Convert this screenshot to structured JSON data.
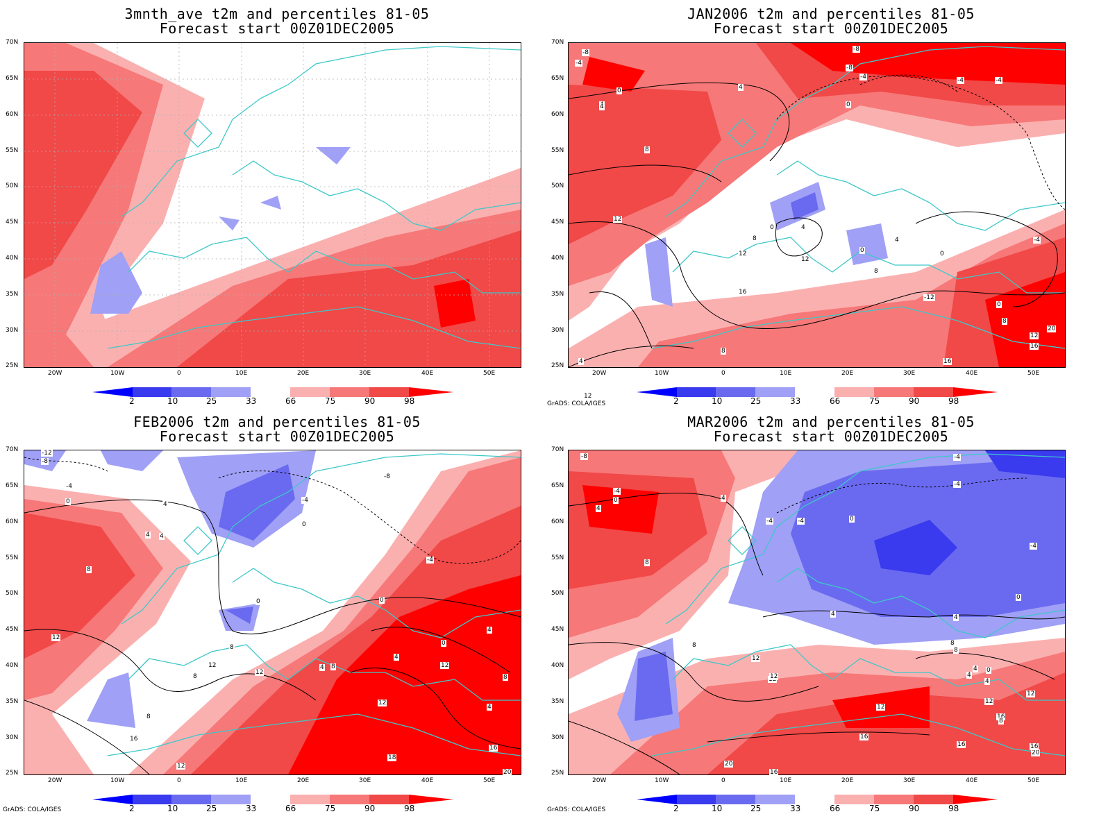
{
  "colors": {
    "blue_deep": "#3a3aee",
    "blue_mid": "#6a6af0",
    "blue_light": "#a0a0f6",
    "red_light": "#fbb0b0",
    "red_mid": "#f67878",
    "red_strong": "#f14848",
    "red_deep": "#ff0000",
    "coast": "#3ec8c8",
    "grid": "#b0b0b0"
  },
  "colorbar": {
    "labels": [
      "2",
      "10",
      "25",
      "33",
      "66",
      "75",
      "90",
      "98"
    ]
  },
  "lat_labels": [
    "70N",
    "65N",
    "60N",
    "55N",
    "50N",
    "45N",
    "40N",
    "35N",
    "30N",
    "25N"
  ],
  "lon_labels": [
    "20W",
    "10W",
    "0",
    "10E",
    "20E",
    "30E",
    "40E",
    "50E"
  ],
  "credit": "GrADS: COLA/IGES",
  "panels": [
    {
      "title1": "3mnth_ave t2m and percentiles 81-05",
      "title2": "Forecast start 00Z01DEC2005",
      "show_credit": false,
      "contour_labels": []
    },
    {
      "title1": "JAN2006 t2m and percentiles 81-05",
      "title2": "Forecast start 00Z01DEC2005",
      "show_credit": true,
      "contour_labels": [
        "-8",
        "-4",
        "0",
        "4",
        "-8",
        "-8",
        "-4",
        "-4",
        "-4",
        "0",
        "4",
        "4",
        "8",
        "12",
        "0",
        "4",
        "8",
        "12",
        "12",
        "0",
        "0",
        "-4",
        "4",
        "8",
        "-4",
        "-12",
        "0",
        "8",
        "12",
        "16",
        "4",
        "16",
        "20",
        "16",
        "8",
        "12"
      ]
    },
    {
      "title1": "FEB2006 t2m and percentiles 81-05",
      "title2": "Forecast start 00Z01DEC2005",
      "show_credit": true,
      "contour_labels": [
        "-12",
        "-8",
        "-4",
        "0",
        "4",
        "-8",
        "-4",
        "0",
        "4",
        "4",
        "8",
        "-4",
        "0",
        "0",
        "12",
        "8",
        "12",
        "12",
        "4",
        "8",
        "4",
        "0",
        "4",
        "8",
        "12",
        "8",
        "12",
        "4",
        "8",
        "16",
        "16",
        "18",
        "12",
        "20"
      ]
    },
    {
      "title1": "MAR2006 t2m and percentiles 81-05",
      "title2": "Forecast start 00Z01DEC2005",
      "show_credit": true,
      "contour_labels": [
        "-8",
        "-4",
        "0",
        "4",
        "4",
        "8",
        "-4",
        "-4",
        "-4",
        "-4",
        "0",
        "-4",
        "0",
        "4",
        "4",
        "8",
        "12",
        "12",
        "8",
        "12",
        "8",
        "4",
        "0",
        "12",
        "12",
        "16",
        "16",
        "16",
        "20",
        "20",
        "16",
        "8",
        "12",
        "16",
        "4",
        "4"
      ]
    }
  ]
}
